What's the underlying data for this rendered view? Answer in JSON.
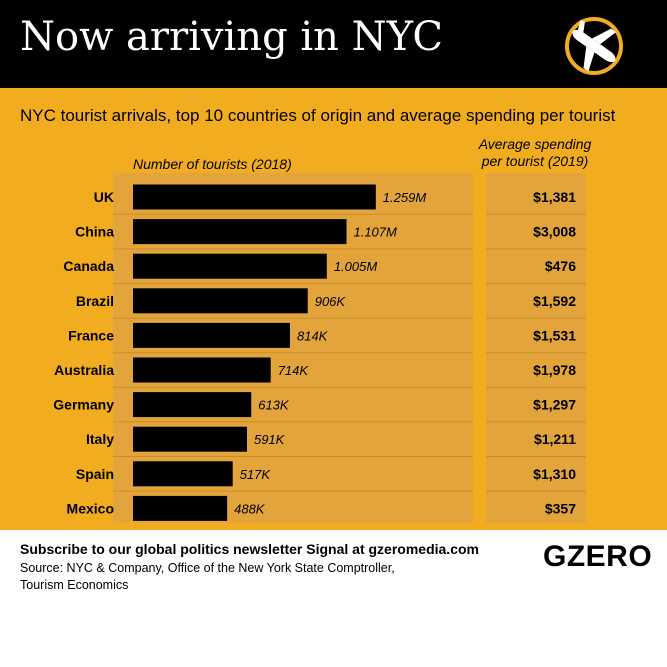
{
  "header": {
    "title": "Now arriving in NYC"
  },
  "subtitle": "NYC tourist arrivals, top 10 countries of origin and average spending per tourist",
  "chart_data": {
    "type": "bar",
    "orientation": "horizontal",
    "categories": [
      "UK",
      "China",
      "Canada",
      "Brazil",
      "France",
      "Australia",
      "Germany",
      "Italy",
      "Spain",
      "Mexico"
    ],
    "xlabel": "Number of tourists (2018)",
    "series": [
      {
        "name": "Number of tourists (2018)",
        "values": [
          1259000,
          1107000,
          1005000,
          906000,
          814000,
          714000,
          613000,
          591000,
          517000,
          488000
        ],
        "value_labels": [
          "1.259M",
          "1.107M",
          "1.005M",
          "906K",
          "814K",
          "714K",
          "613K",
          "591K",
          "517K",
          "488K"
        ]
      },
      {
        "name": "Average spending per tourist (2019)",
        "values": [
          1381,
          3008,
          476,
          1592,
          1531,
          1978,
          1297,
          1211,
          1310,
          357
        ],
        "value_labels": [
          "$1,381",
          "$3,008",
          "$476",
          "$1,592",
          "$1,531",
          "$1,978",
          "$1,297",
          "$1,211",
          "$1,310",
          "$357"
        ]
      }
    ],
    "right_column_header": "Average spending per tourist (2019)",
    "xlim": [
      0,
      1400000
    ],
    "grid": false,
    "bar_color": "#000000"
  },
  "footer": {
    "subscribe": "Subscribe to our global politics newsletter Signal at gzeromedia.com",
    "source": "Source: NYC & Company, Office of the New York State Comptroller, Tourism Economics",
    "brand": "GZERO"
  },
  "colors": {
    "background": "#f2ac1f",
    "panel": "#e3a43c",
    "header": "#000000",
    "accent": "#f2ac1f"
  },
  "icons": {
    "logo": "airplane-landing-icon"
  }
}
